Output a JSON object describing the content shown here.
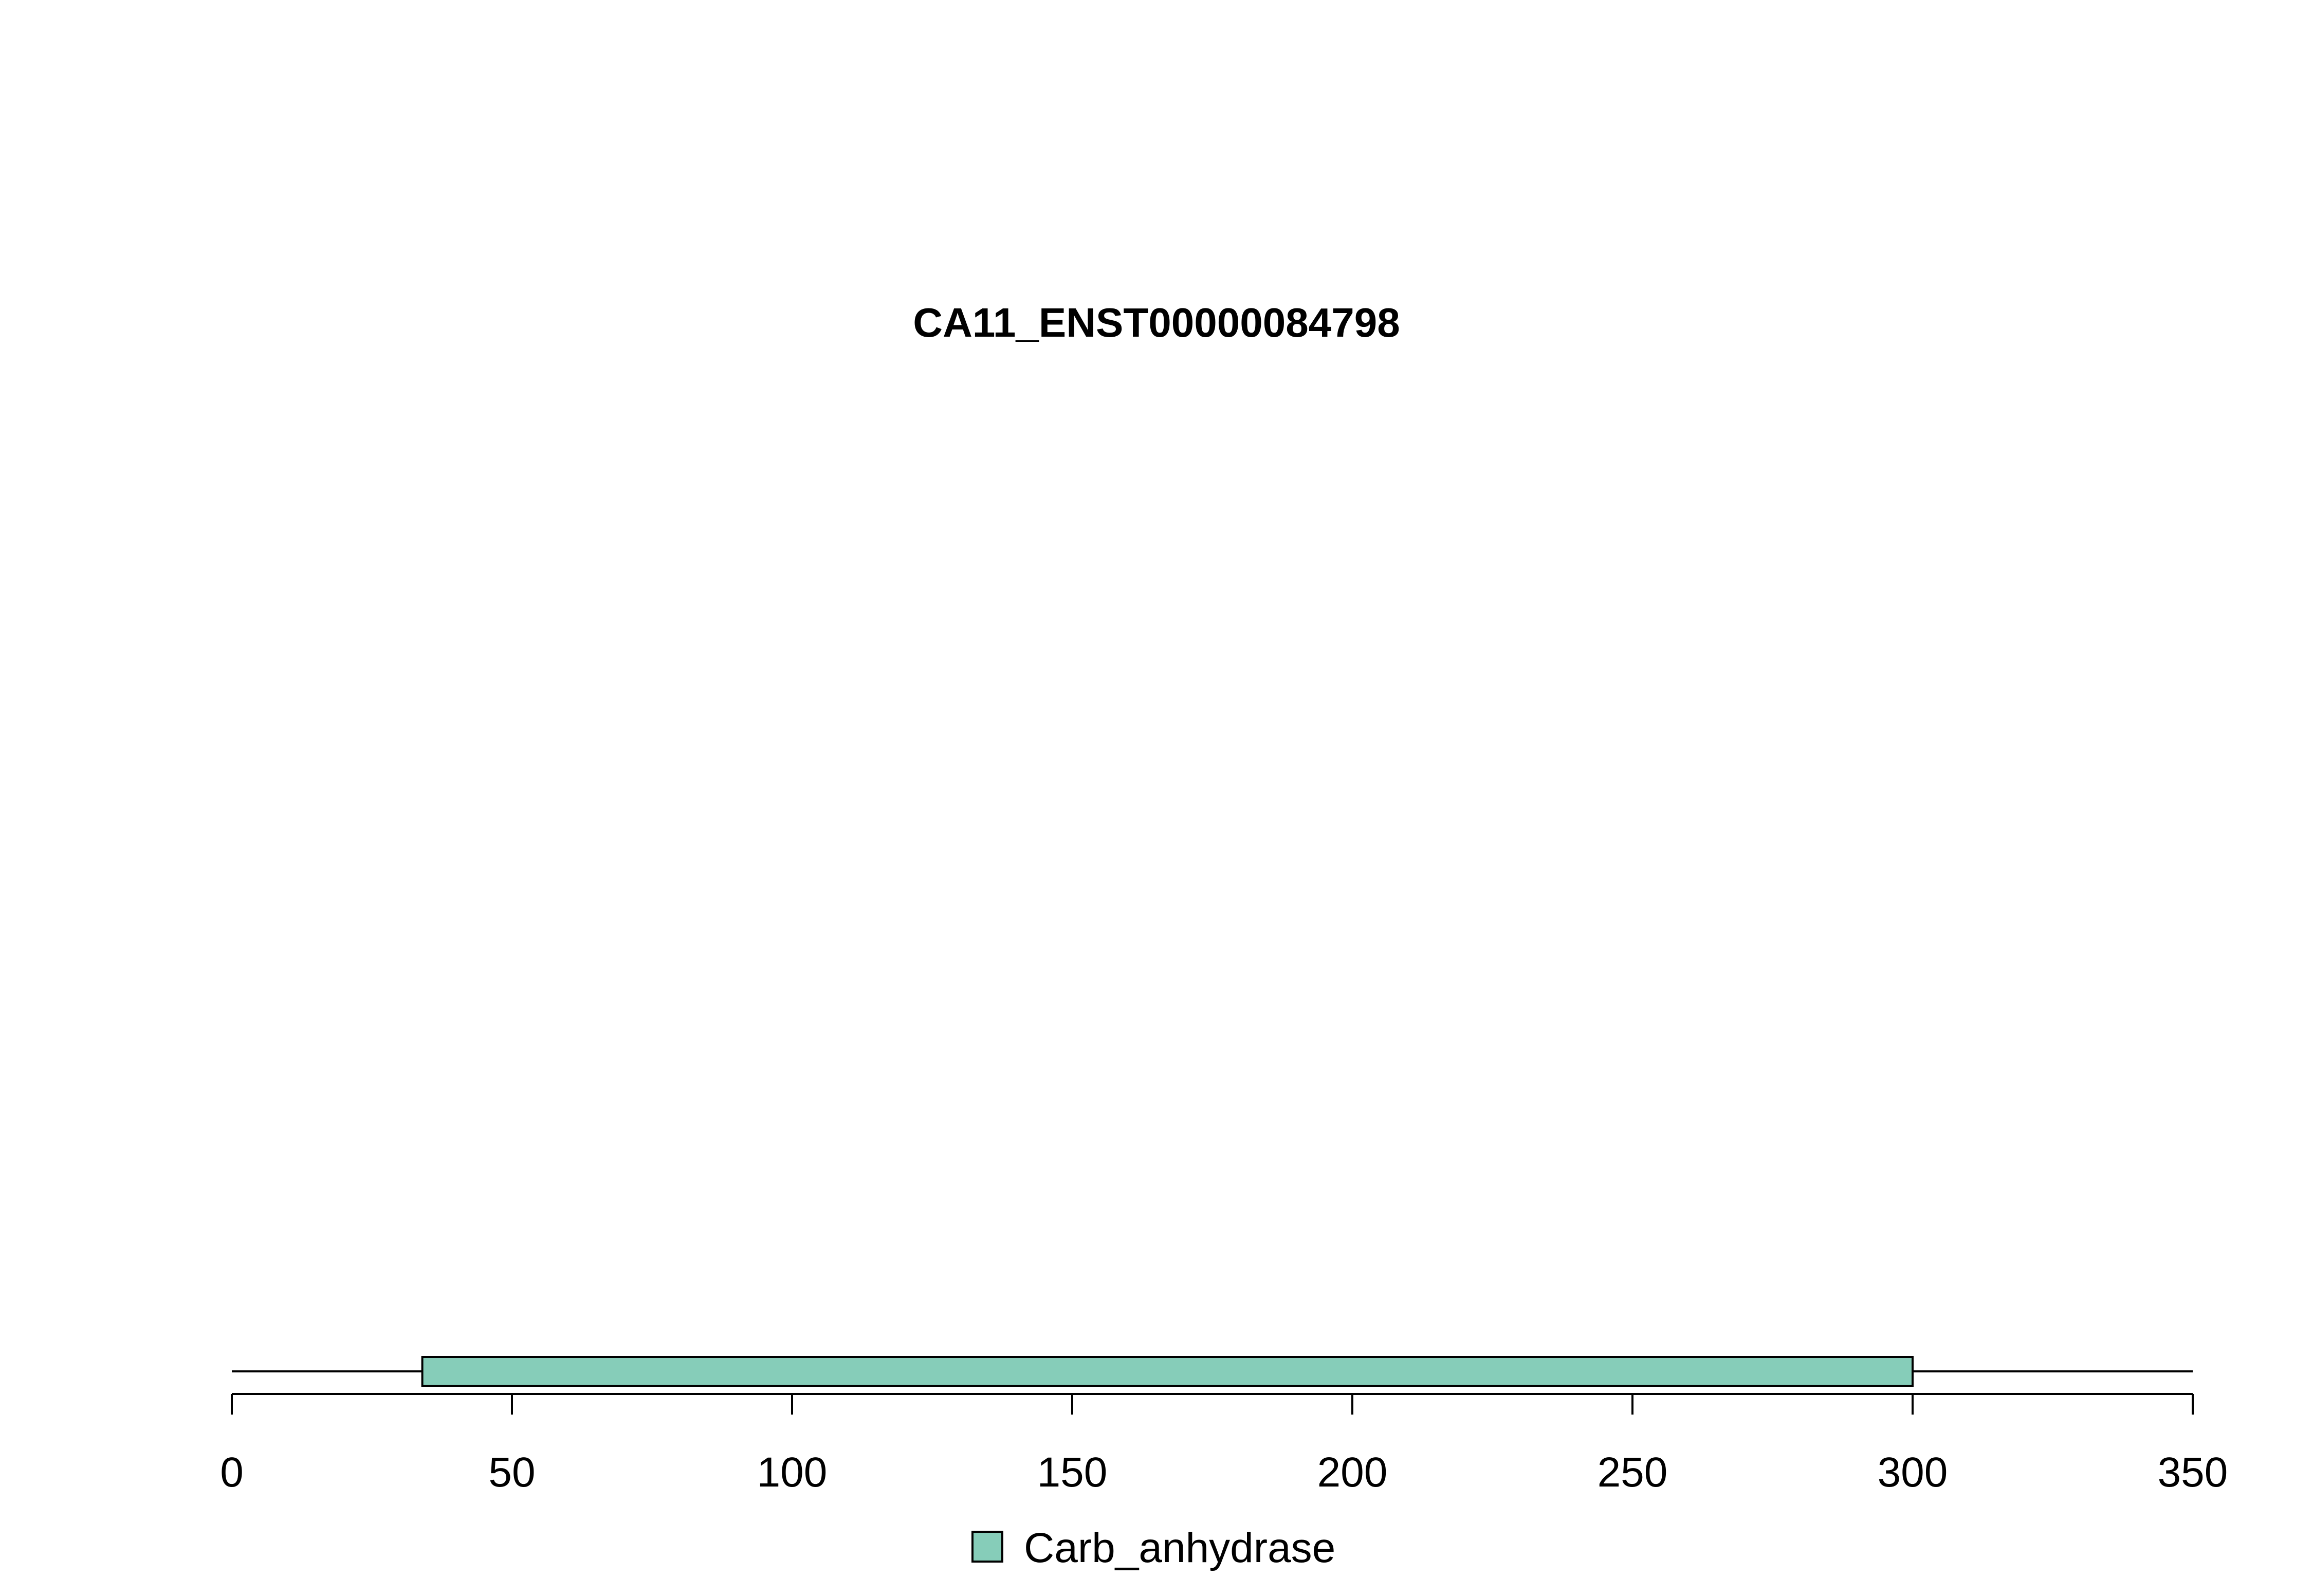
{
  "chart_data": {
    "type": "domain-track",
    "title": "CA11_ENST00000084798",
    "xlim": [
      0,
      350
    ],
    "x_ticks": [
      0,
      50,
      100,
      150,
      200,
      250,
      300,
      350
    ],
    "x_tick_labels": [
      "0",
      "50",
      "100",
      "150",
      "200",
      "250",
      "300",
      "350"
    ],
    "protein_length": 350,
    "domains": [
      {
        "name": "Carb_anhydrase",
        "start": 34,
        "end": 300,
        "color": "#86cdb9"
      }
    ],
    "legend": {
      "position": "bottom-center",
      "entries": [
        {
          "label": "Carb_anhydrase",
          "color": "#86cdb9"
        }
      ]
    },
    "grid": false
  }
}
